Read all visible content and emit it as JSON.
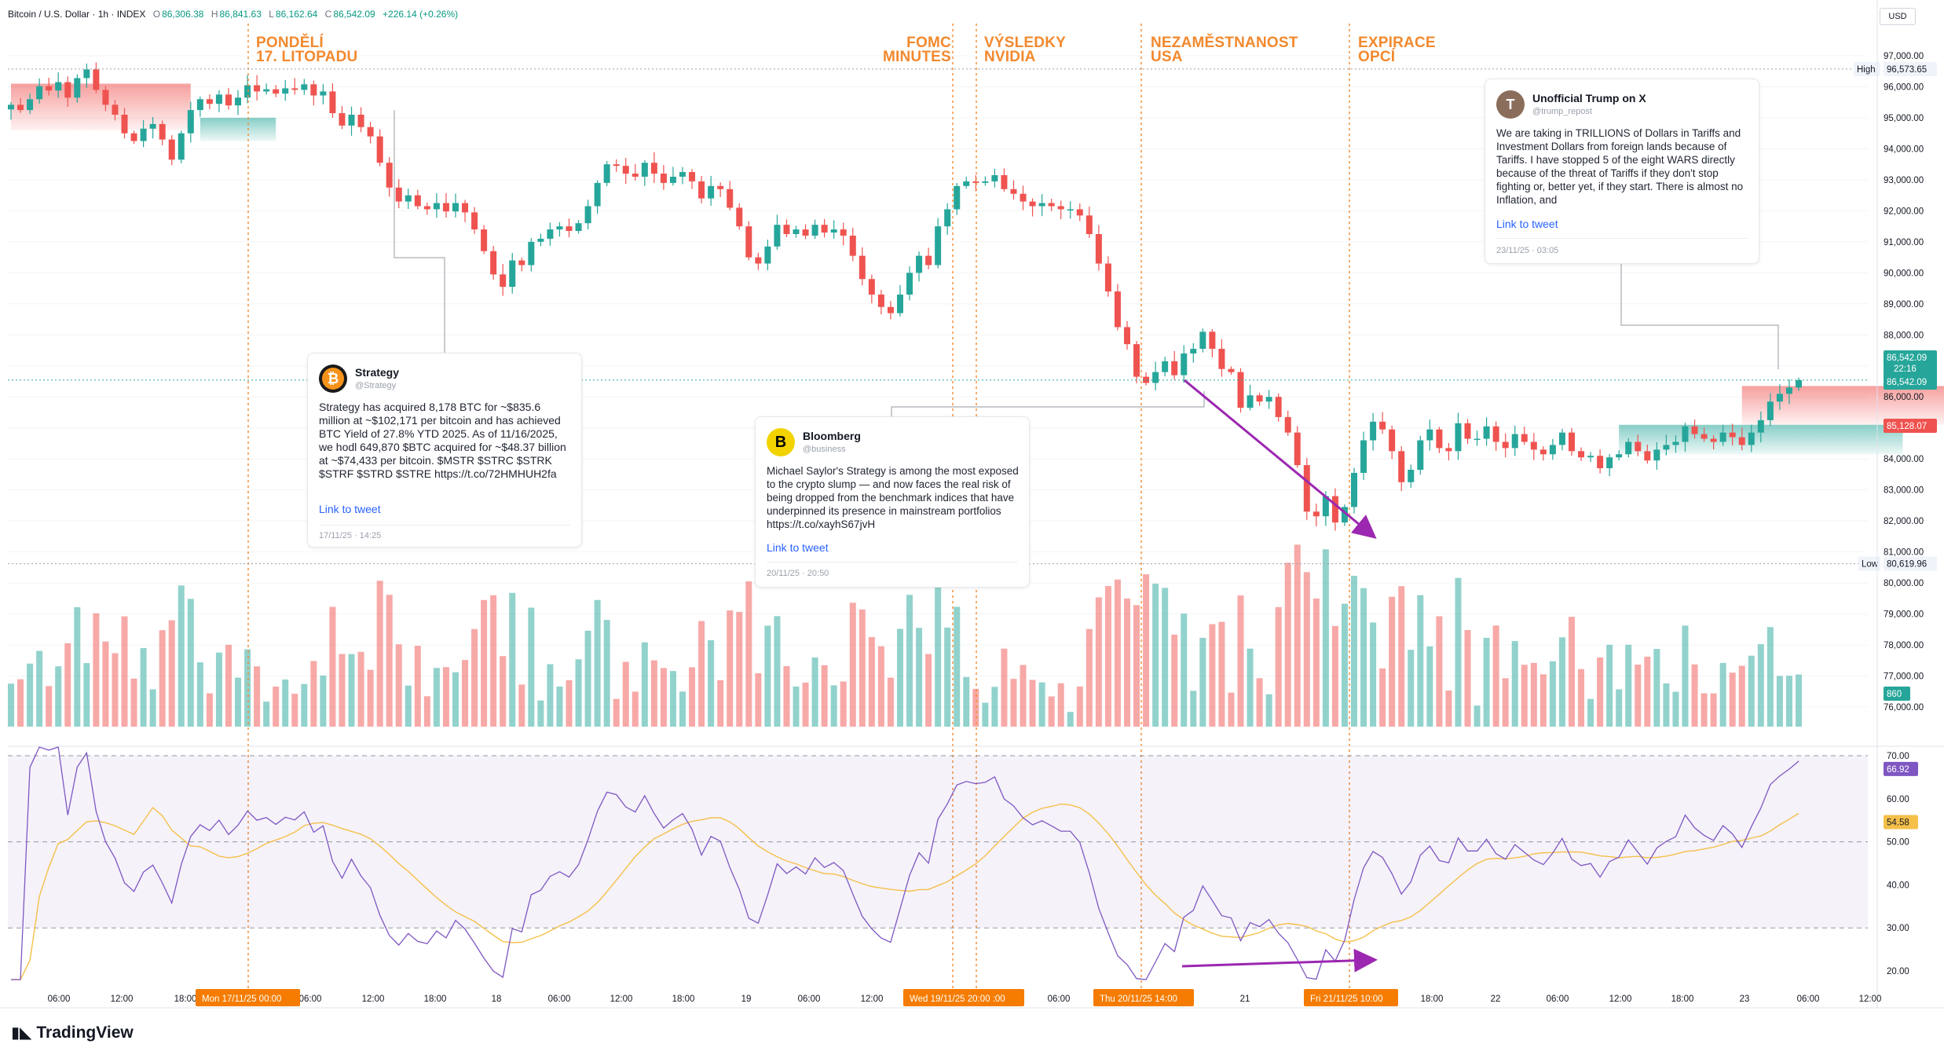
{
  "header": {
    "symbol": "Bitcoin / U.S. Dollar · 1h · INDEX",
    "o_label": "O",
    "o": "86,306.38",
    "h_label": "H",
    "h": "86,841.63",
    "l_label": "L",
    "l": "86,162.64",
    "c_label": "C",
    "c": "86,542.09",
    "change": "+226.14 (+0.26%)"
  },
  "currency_button": "USD",
  "events": [
    {
      "label": "PONDĚLÍ\n17. LITOPADU"
    },
    {
      "label": "FOMC\nMINUTES"
    },
    {
      "label": "VÝSLEDKY\nNVIDIA"
    },
    {
      "label": "NEZAMĚSTNANOST\nUSA"
    },
    {
      "label": "EXPIRACE\nOPCÍ"
    }
  ],
  "tweets": [
    {
      "name": "Strategy",
      "handle": "@Strategy",
      "avatar_letter": "₿",
      "avatar_color": "#f7931a",
      "body": "Strategy has acquired 8,178 BTC for ~$835.6 million at ~$102,171 per bitcoin and has achieved BTC Yield of 27.8% YTD 2025. As of 11/16/2025, we hodl 649,870 $BTC acquired for ~$48.37 billion at ~$74,433 per bitcoin. $MSTR $STRC $STRK $STRF $STRD $STRE https://t.co/72HMHUH2fa",
      "link": "Link to tweet",
      "date": "17/11/25 · 14:25"
    },
    {
      "name": "Bloomberg",
      "handle": "@business",
      "avatar_letter": "B",
      "avatar_color": "#f2d300",
      "body": "Michael Saylor's Strategy is among the most exposed to the crypto slump — and now faces the real risk of being dropped from the benchmark indices that have underpinned its presence in mainstream portfolios https://t.co/xayhS67jvH",
      "link": "Link to tweet",
      "date": "20/11/25 · 20:50"
    },
    {
      "name": "Unofficial Trump on X",
      "handle": "@trump_repost",
      "avatar_letter": "T",
      "avatar_color": "#8a6d5a",
      "body": "We are taking in TRILLIONS of Dollars in Tariffs and Investment Dollars from foreign lands because of Tariffs. I have stopped 5 of the eight WARS directly because of the threat of Tariffs if they don't stop fighting or, better yet, if they start. There is almost no Inflation, and",
      "link": "Link to tweet",
      "date": "23/11/25 · 03:05"
    }
  ],
  "price_axis": {
    "ticks": [
      "97,000.00",
      "96,000.00",
      "95,000.00",
      "94,000.00",
      "93,000.00",
      "92,000.00",
      "91,000.00",
      "90,000.00",
      "89,000.00",
      "88,000.00",
      "87,000.00",
      "86,000.00",
      "85,000.00",
      "84,000.00",
      "83,000.00",
      "82,000.00",
      "81,000.00",
      "80,000.00",
      "79,000.00",
      "78,000.00",
      "77,000.00",
      "76,000.00"
    ],
    "high_label": "High",
    "high_value": "96,573.65",
    "low_label": "Low",
    "low_value": "80,619.96",
    "last_price": "86,542.09",
    "countdown": "22:16",
    "last_price_2": "86,542.09",
    "red_level": "85,128.07",
    "volume_value": "860"
  },
  "rsi_axis": {
    "ticks": [
      "70.00",
      "60.00",
      "50.00",
      "40.00",
      "30.00",
      "20.00"
    ],
    "rsi_value": "66.92",
    "ma_value": "54.58"
  },
  "time_axis": {
    "ticks": [
      "06:00",
      "12:00",
      "18:00",
      "06:00",
      "12:00",
      "18:00",
      "18",
      "06:00",
      "12:00",
      "18:00",
      "19",
      "06:00",
      "12:00",
      "06:00",
      "21",
      "18:00",
      "22",
      "06:00",
      "12:00",
      "18:00",
      "23",
      "06:00",
      "12:00"
    ],
    "badges": [
      "Mon 17/11/25   00:00",
      "Wed 19/11/25   20:00   :00",
      "Thu 20/11/25   14:00",
      "Fri 21/11/25   10:00"
    ]
  },
  "footer": {
    "brand": "TradingView"
  },
  "colors": {
    "up": "#26a69a",
    "down": "#ef5350",
    "event": "#f2892e",
    "rsi": "#7e57c2",
    "rsi_ma": "#f5c04a",
    "arrow": "#9c27b0"
  },
  "chart_data": {
    "type": "candlestick",
    "interval": "1h",
    "ylim": [
      75800,
      97200
    ],
    "rsi_levels": [
      70,
      50,
      30
    ],
    "high": 96573.65,
    "low": 80619.96,
    "last": 86542.09,
    "closes": [
      95420,
      95250,
      95600,
      96020,
      95880,
      96150,
      95650,
      96280,
      96560,
      95900,
      95420,
      95100,
      94500,
      94250,
      94650,
      94800,
      94300,
      93650,
      94500,
      95250,
      95600,
      95450,
      95750,
      95400,
      95650,
      96050,
      95850,
      95920,
      95780,
      95950,
      95900,
      96080,
      95720,
      95850,
      95150,
      94750,
      95100,
      94700,
      94400,
      93550,
      92750,
      92300,
      92500,
      92150,
      92050,
      92250,
      91980,
      92250,
      91950,
      91400,
      90700,
      89950,
      89550,
      90400,
      90250,
      91000,
      91100,
      91400,
      91500,
      91350,
      91600,
      92150,
      92900,
      93500,
      93450,
      93200,
      93100,
      93550,
      93200,
      92900,
      93100,
      93250,
      92950,
      92400,
      92800,
      92700,
      92100,
      91500,
      90500,
      90300,
      90850,
      91550,
      91250,
      91400,
      91200,
      91550,
      91300,
      91400,
      91200,
      90550,
      89800,
      89300,
      88900,
      88700,
      89300,
      90000,
      90550,
      90250,
      91500,
      92050,
      92800,
      92950,
      92900,
      92950,
      93150,
      92700,
      92550,
      92300,
      92150,
      92250,
      92150,
      92050,
      92050,
      91850,
      91250,
      90300,
      89400,
      88250,
      87700,
      86650,
      86450,
      86800,
      87150,
      86700,
      87400,
      87550,
      88100,
      87550,
      86900,
      86800,
      85650,
      86050,
      85850,
      86000,
      85350,
      84850,
      83800,
      82300,
      82150,
      82800,
      81950,
      82450,
      83550,
      84600,
      85200,
      84950,
      84250,
      83250,
      83650,
      84600,
      84950,
      84350,
      84250,
      85150,
      84650,
      84650,
      85050,
      84550,
      84350,
      84800,
      84550,
      84300,
      84150,
      84450,
      84850,
      84250,
      84050,
      84100,
      83700,
      84050,
      84150,
      84550,
      84250,
      83950,
      84300,
      84450,
      84550,
      85050,
      84800,
      84650,
      84550,
      84850,
      84700,
      84450,
      84850,
      85250,
      85850,
      86100,
      86300,
      86542
    ]
  }
}
